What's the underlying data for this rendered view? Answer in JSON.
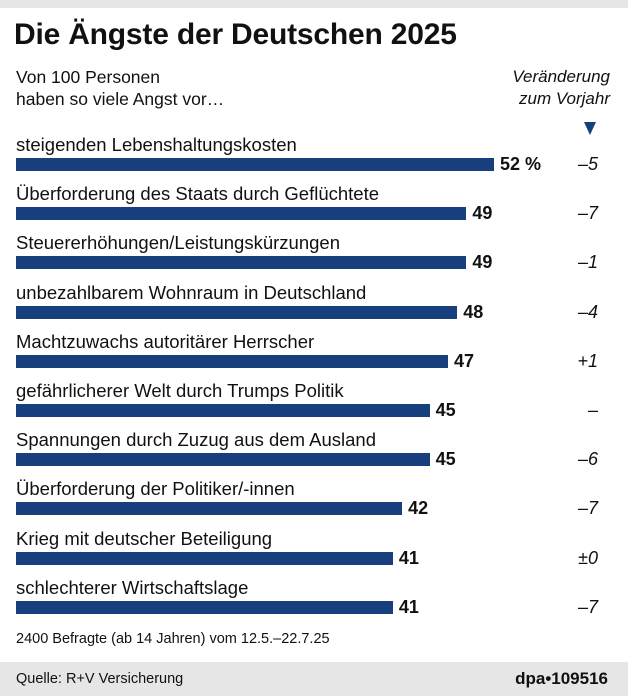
{
  "chart_data": {
    "type": "bar",
    "orientation": "horizontal",
    "title": "Die Ängste der Deutschen 2025",
    "subtitle_line1": "Von 100 Personen",
    "subtitle_line2": "haben so viele Angst vor…",
    "change_header_line1": "Veränderung",
    "change_header_line2": "zum Vorjahr",
    "unit_suffix": " %",
    "xlim": [
      0,
      52
    ],
    "categories": [
      "steigenden Lebenshaltungskosten",
      "Überforderung des Staats durch Geflüchtete",
      "Steuererhöhungen/Leistungskürzungen",
      "unbezahlbarem Wohnraum in Deutschland",
      "Machtzuwachs autoritärer Herrscher",
      "gefährlicherer Welt durch Trumps Politik",
      "Spannungen durch Zuzug aus dem Ausland",
      "Überforderung der Politiker/-innen",
      "Krieg mit deutscher Beteiligung",
      "schlechterer Wirtschaftslage"
    ],
    "values": [
      52,
      49,
      49,
      48,
      47,
      45,
      45,
      42,
      41,
      41
    ],
    "changes": [
      "–5",
      "–7",
      "–1",
      "–4",
      "+1",
      "–",
      "–6",
      "–7",
      "±0",
      "–7"
    ],
    "note": "2400 Befragte (ab 14 Jahren) vom 12.5.–22.7.25",
    "source": "Quelle: R+V Versicherung",
    "credit": "dpa•109516",
    "bar_color": "#173f7d"
  }
}
